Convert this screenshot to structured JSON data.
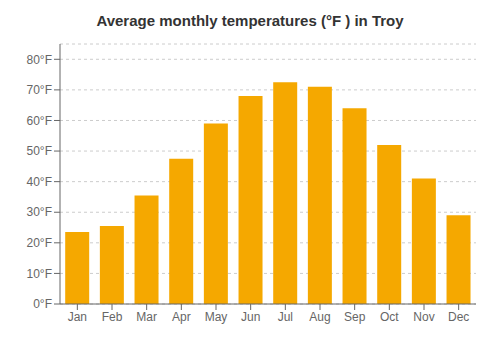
{
  "chart_data": {
    "type": "bar",
    "title": "Average monthly temperatures (°F ) in Troy",
    "categories": [
      "Jan",
      "Feb",
      "Mar",
      "Apr",
      "May",
      "Jun",
      "Jul",
      "Aug",
      "Sep",
      "Oct",
      "Nov",
      "Dec"
    ],
    "values": [
      23.5,
      25.5,
      35.5,
      47.5,
      59,
      68,
      72.5,
      71,
      64,
      52,
      41,
      29
    ],
    "color": "#F5A800",
    "ylim": [
      0,
      85
    ],
    "yticks": [
      {
        "value": 0,
        "label": "0°F"
      },
      {
        "value": 10,
        "label": "10°F"
      },
      {
        "value": 20,
        "label": "20°F"
      },
      {
        "value": 30,
        "label": "30°F"
      },
      {
        "value": 40,
        "label": "40°F"
      },
      {
        "value": 50,
        "label": "50°F"
      },
      {
        "value": 60,
        "label": "60°F"
      },
      {
        "value": 70,
        "label": "70°F"
      },
      {
        "value": 80,
        "label": "80°F"
      }
    ],
    "grid": true
  }
}
